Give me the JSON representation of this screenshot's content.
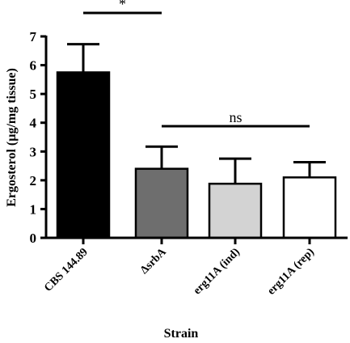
{
  "chart_data": {
    "type": "bar",
    "xlabel": "Strain",
    "ylabel": "Ergosterol (µg/mg tissue)",
    "ylim": [
      0,
      7
    ],
    "yticks": [
      0,
      1,
      2,
      3,
      4,
      5,
      6,
      7
    ],
    "categories": [
      "CBS 144.89",
      "ΔsrbA",
      "erg11A (ind)",
      "erg11A (rep)"
    ],
    "values": [
      5.75,
      2.4,
      1.88,
      2.1
    ],
    "errors": [
      0.98,
      0.77,
      0.87,
      0.53
    ],
    "colors": [
      "#000000",
      "#6e6e6e",
      "#d3d3d3",
      "#ffffff"
    ],
    "significance": [
      {
        "label": "*",
        "from": 0,
        "to": 1
      },
      {
        "label": "ns",
        "from": 1,
        "to": 3
      }
    ],
    "grid": false,
    "legend": "none"
  }
}
